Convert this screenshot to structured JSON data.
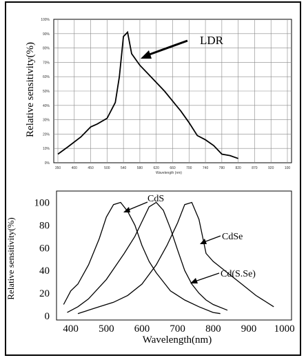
{
  "chart_data": [
    {
      "type": "line",
      "title": "",
      "xlabel": "Wavelength (nm)",
      "ylabel": "Relative sensitivity(%)",
      "x_ticks": [
        "350",
        "400",
        "450",
        "500",
        "540",
        "580",
        "620",
        "660",
        "700",
        "740",
        "780",
        "820",
        "870",
        "920",
        "100"
      ],
      "y_ticks": [
        "0%",
        "10%",
        "20%",
        "30%",
        "40%",
        "50%",
        "60%",
        "70%",
        "80%",
        "90%",
        "100%"
      ],
      "ylim": [
        0,
        100
      ],
      "grid": true,
      "annotations": [
        {
          "text": "LDR",
          "x": 580,
          "y": 72
        }
      ],
      "series": [
        {
          "name": "LDR",
          "x": [
            350,
            380,
            420,
            450,
            470,
            500,
            520,
            530,
            540,
            550,
            560,
            580,
            600,
            620,
            640,
            660,
            680,
            700,
            720,
            740,
            760,
            780,
            800,
            820
          ],
          "y": [
            6,
            11,
            18,
            25,
            27,
            31,
            42,
            60,
            88,
            91,
            76,
            68,
            62,
            56,
            50,
            43,
            36,
            28,
            19,
            16,
            12,
            6,
            5,
            3
          ]
        }
      ]
    },
    {
      "type": "line",
      "title": "",
      "xlabel": "Wavelength(nm)",
      "ylabel": "Relative sensitivity(%)",
      "xlim": [
        360,
        1020
      ],
      "ylim": [
        0,
        110
      ],
      "x_ticks": [
        "400",
        "500",
        "600",
        "700",
        "800",
        "900",
        "1000"
      ],
      "y_ticks": [
        "0",
        "20",
        "40",
        "60",
        "80",
        "100"
      ],
      "grid": false,
      "annotations": [
        {
          "text": "CdS"
        },
        {
          "text": "CdSe"
        },
        {
          "text": "Cd(S.Se)"
        }
      ],
      "series": [
        {
          "name": "CdS",
          "x": [
            380,
            400,
            420,
            450,
            480,
            500,
            520,
            540,
            560,
            580,
            600,
            620,
            640,
            660,
            680,
            700,
            720,
            760,
            800,
            820
          ],
          "y": [
            10,
            22,
            28,
            45,
            68,
            87,
            98,
            100,
            92,
            80,
            62,
            48,
            38,
            30,
            22,
            18,
            14,
            8,
            3,
            2
          ]
        },
        {
          "name": "Cd(S.Se)",
          "x": [
            390,
            420,
            450,
            500,
            550,
            580,
            600,
            620,
            640,
            660,
            680,
            700,
            720,
            740,
            760,
            780,
            800,
            840
          ],
          "y": [
            3,
            8,
            15,
            32,
            55,
            70,
            83,
            96,
            100,
            93,
            77,
            58,
            40,
            28,
            20,
            14,
            10,
            5
          ]
        },
        {
          "name": "CdSe",
          "x": [
            420,
            480,
            520,
            560,
            600,
            640,
            670,
            700,
            720,
            740,
            760,
            780,
            800,
            840,
            880,
            920,
            970
          ],
          "y": [
            2,
            8,
            12,
            18,
            28,
            45,
            62,
            82,
            98,
            100,
            85,
            55,
            48,
            38,
            28,
            18,
            8
          ]
        }
      ]
    }
  ]
}
